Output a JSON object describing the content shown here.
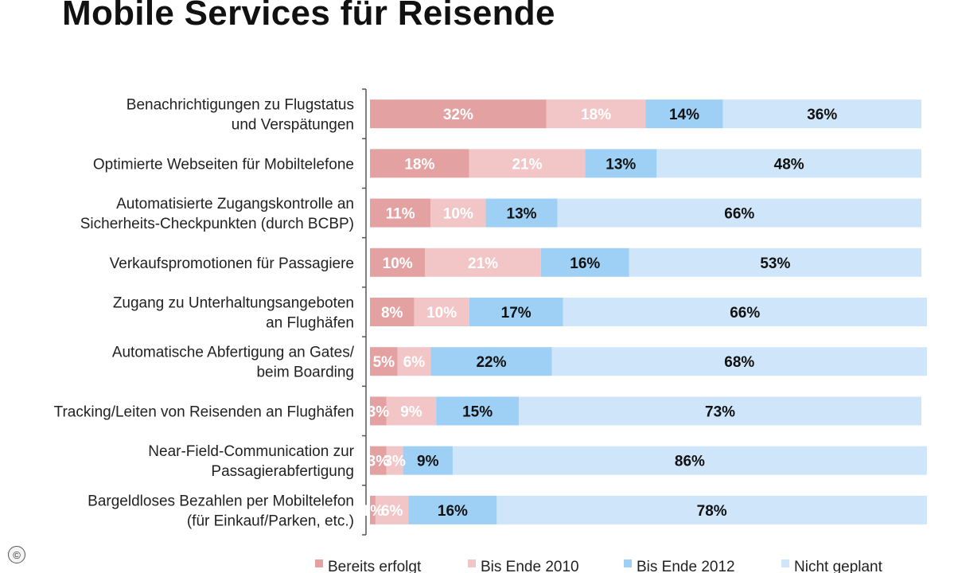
{
  "chart_data": {
    "type": "bar",
    "orientation": "horizontal",
    "stacked": true,
    "title": "Mobile Services für Reisende",
    "value_suffix": "%",
    "categories": [
      [
        "Benachrichtigungen zu Flugstatus",
        "und Verspätungen"
      ],
      [
        "Optimierte Webseiten für Mobiltelefone"
      ],
      [
        "Automatisierte Zugangskontrolle an",
        "Sicherheits-Checkpunkten (durch BCBP)"
      ],
      [
        "Verkaufspromotionen für Passagiere"
      ],
      [
        "Zugang zu Unterhaltungsangeboten",
        "an Flughäfen"
      ],
      [
        "Automatische Abfertigung an Gates/",
        "beim Boarding"
      ],
      [
        "Tracking/Leiten von Reisenden an Flughäfen"
      ],
      [
        "Near-Field-Communication zur",
        "Passagierabfertigung"
      ],
      [
        "Bargeldloses Bezahlen per Mobiltelefon",
        "(für Einkauf/Parken, etc.)"
      ]
    ],
    "series": [
      {
        "name": "Bereits erfolgt",
        "color": "#e3a1a1",
        "label_color": "#ffffff",
        "values": [
          32,
          18,
          11,
          10,
          8,
          5,
          3,
          3,
          1
        ]
      },
      {
        "name": "Bis Ende 2010",
        "color": "#f2c6c6",
        "label_color": "#ffffff",
        "values": [
          18,
          21,
          10,
          21,
          10,
          6,
          9,
          3,
          6
        ]
      },
      {
        "name": "Bis Ende 2012",
        "color": "#9ed0f5",
        "label_color": "#111111",
        "values": [
          14,
          13,
          13,
          16,
          17,
          22,
          15,
          9,
          16
        ]
      },
      {
        "name": "Nicht geplant",
        "color": "#cfe6fa",
        "label_color": "#111111",
        "values": [
          36,
          48,
          66,
          53,
          66,
          68,
          73,
          86,
          78
        ]
      }
    ],
    "xlim": [
      0,
      100
    ],
    "legend_position": "bottom"
  },
  "copyright_symbol": "©"
}
